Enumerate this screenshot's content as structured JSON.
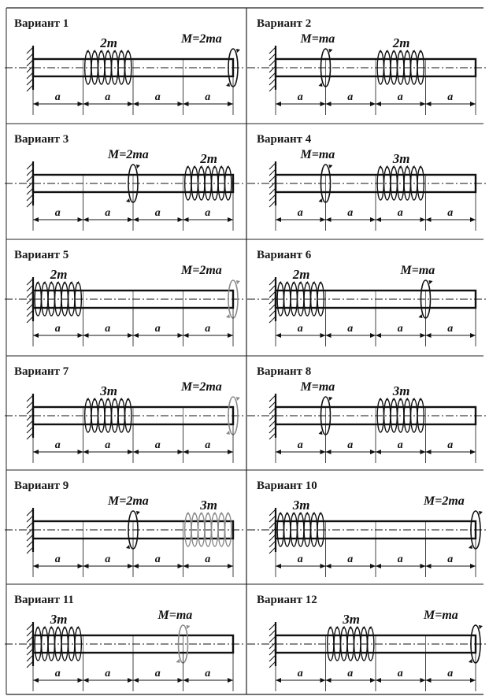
{
  "diagram": {
    "variants": [
      {
        "title": "Вариант 1",
        "moment": {
          "label": "M=2ma",
          "segment": 4,
          "faded": false
        },
        "distributed": {
          "label": "2m",
          "segment": 1,
          "faded": false
        }
      },
      {
        "title": "Вариант 2",
        "moment": {
          "label": "M=ma",
          "segment": 1,
          "faded": false
        },
        "distributed": {
          "label": "2m",
          "segment": 2,
          "faded": false
        }
      },
      {
        "title": "Вариант 3",
        "moment": {
          "label": "M=2ma",
          "segment": 2,
          "faded": false
        },
        "distributed": {
          "label": "2m",
          "segment": 3,
          "faded": false
        }
      },
      {
        "title": "Вариант 4",
        "moment": {
          "label": "M=ma",
          "segment": 1,
          "faded": false
        },
        "distributed": {
          "label": "3m",
          "segment": 2,
          "faded": false
        }
      },
      {
        "title": "Вариант 5",
        "moment": {
          "label": "M=2ma",
          "segment": 4,
          "faded": true
        },
        "distributed": {
          "label": "2m",
          "segment": 0,
          "faded": false
        }
      },
      {
        "title": "Вариант 6",
        "moment": {
          "label": "M=ma",
          "segment": 3,
          "faded": false
        },
        "distributed": {
          "label": "2m",
          "segment": 0,
          "faded": false
        }
      },
      {
        "title": "Вариант 7",
        "moment": {
          "label": "M=2ma",
          "segment": 4,
          "faded": true
        },
        "distributed": {
          "label": "3m",
          "segment": 1,
          "faded": false
        }
      },
      {
        "title": "Вариант 8",
        "moment": {
          "label": "M=ma",
          "segment": 1,
          "faded": false
        },
        "distributed": {
          "label": "3m",
          "segment": 2,
          "faded": false
        }
      },
      {
        "title": "Вариант 9",
        "moment": {
          "label": "M=2ma",
          "segment": 2,
          "faded": false
        },
        "distributed": {
          "label": "3m",
          "segment": 3,
          "faded": true
        }
      },
      {
        "title": "Вариант 10",
        "moment": {
          "label": "M=2ma",
          "segment": 4,
          "faded": false
        },
        "distributed": {
          "label": "3m",
          "segment": 0,
          "faded": false
        }
      },
      {
        "title": "Вариант 11",
        "moment": {
          "label": "M=ma",
          "segment": 3,
          "faded": true
        },
        "distributed": {
          "label": "3m",
          "segment": 0,
          "faded": false
        }
      },
      {
        "title": "Вариант 12",
        "moment": {
          "label": "M=ma",
          "segment": 4,
          "faded": false
        },
        "distributed": {
          "label": "3m",
          "segment": 1,
          "faded": false
        }
      }
    ],
    "dimension_label": "a",
    "colors": {
      "ink": "#111111",
      "faded": "#8a8a8a",
      "grid": "#222222"
    }
  }
}
